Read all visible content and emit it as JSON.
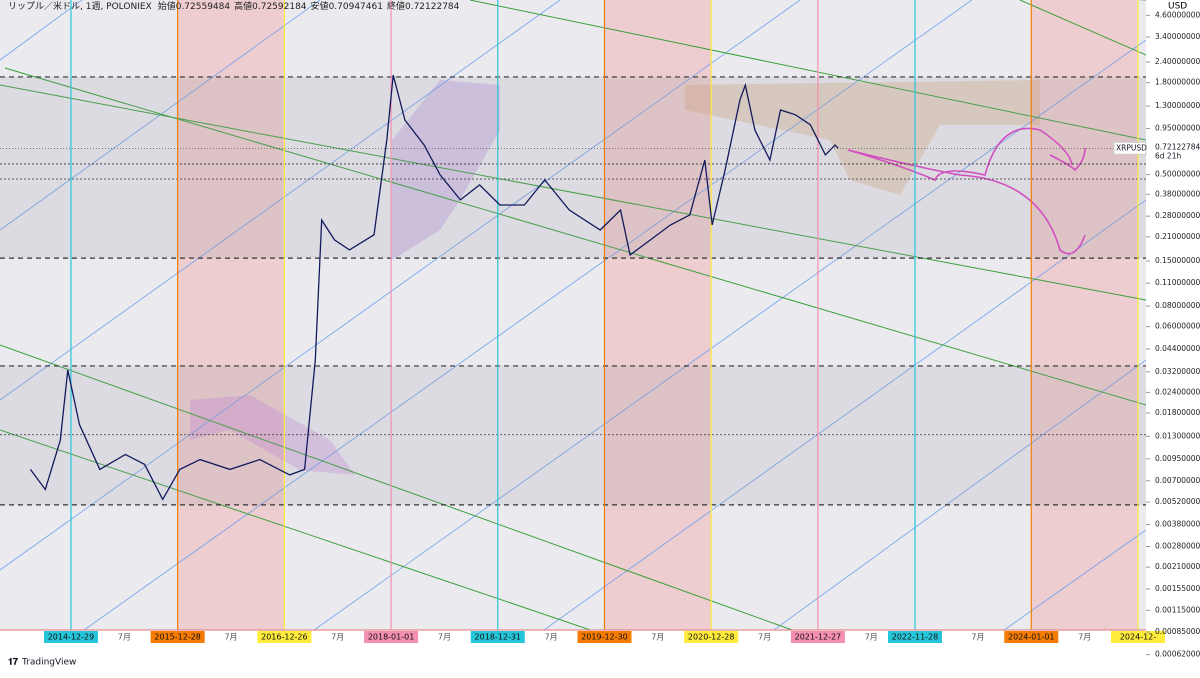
{
  "header": {
    "title": "リップル／米ドル, 1週, POLONIEX",
    "ohlc": [
      {
        "label": "始値",
        "value": 0.72559484
      },
      {
        "label": "高値",
        "value": 0.72592184
      },
      {
        "label": "安値",
        "value": 0.70947461
      },
      {
        "label": "終値",
        "value": 0.72122784
      }
    ]
  },
  "chart_data": {
    "type": "line",
    "log_scale": true,
    "series": [
      {
        "name": "XRPUSD",
        "color": "#131a5c",
        "x": [
          2014.62,
          2014.76,
          2014.9,
          2014.97,
          2015.08,
          2015.27,
          2015.51,
          2015.69,
          2015.86,
          2016.02,
          2016.21,
          2016.49,
          2016.77,
          2017.05,
          2017.19,
          2017.29,
          2017.35,
          2017.47,
          2017.61,
          2017.84,
          2017.96,
          2018.02,
          2018.13,
          2018.31,
          2018.46,
          2018.65,
          2018.83,
          2019.02,
          2019.25,
          2019.44,
          2019.67,
          2019.96,
          2020.15,
          2020.24,
          2020.43,
          2020.62,
          2020.8,
          2020.94,
          2021.01,
          2021.13,
          2021.27,
          2021.32,
          2021.41,
          2021.55,
          2021.65,
          2021.79,
          2021.93,
          2022.07,
          2022.16,
          2022.19
        ],
        "values": [
          0.0082,
          0.0062,
          0.0123,
          0.0328,
          0.0153,
          0.0082,
          0.0101,
          0.0088,
          0.0054,
          0.0082,
          0.0094,
          0.0082,
          0.0094,
          0.0076,
          0.0082,
          0.0377,
          0.265,
          0.201,
          0.175,
          0.216,
          0.81,
          2.0,
          1.07,
          0.755,
          0.497,
          0.351,
          0.433,
          0.327,
          0.327,
          0.464,
          0.305,
          0.231,
          0.305,
          0.163,
          0.201,
          0.248,
          0.285,
          0.612,
          0.248,
          0.533,
          1.42,
          1.74,
          0.93,
          0.612,
          1.23,
          1.15,
          1.0,
          0.658,
          0.755,
          0.721
        ]
      }
    ],
    "last_price": 0.72122784,
    "countdown": "6d 21h",
    "y_unit": "USD",
    "hlines": [
      1.95,
      0.58,
      0.47,
      0.156,
      0.0347,
      0.0133,
      0.005
    ],
    "xlim": [
      2014.335,
      2025.075
    ],
    "xticks": [
      {
        "value": 2015.0,
        "label": "2014-12-29",
        "color": "#26c6da"
      },
      {
        "value": 2015.5,
        "label": "7月"
      },
      {
        "value": 2016.0,
        "label": "2015-12-28",
        "color": "#f57c00"
      },
      {
        "value": 2016.5,
        "label": "7月"
      },
      {
        "value": 2017.0,
        "label": "2016-12-26",
        "color": "#ffeb3b"
      },
      {
        "value": 2017.5,
        "label": "7月"
      },
      {
        "value": 2018.0,
        "label": "2018-01-01",
        "color": "#f48fb1"
      },
      {
        "value": 2018.5,
        "label": "7月"
      },
      {
        "value": 2019.0,
        "label": "2018-12-31",
        "color": "#26c6da"
      },
      {
        "value": 2019.5,
        "label": "7月"
      },
      {
        "value": 2020.0,
        "label": "2019-12-30",
        "color": "#f57c00"
      },
      {
        "value": 2020.5,
        "label": "7月"
      },
      {
        "value": 2021.0,
        "label": "2020-12-28",
        "color": "#ffeb3b"
      },
      {
        "value": 2021.5,
        "label": "7月"
      },
      {
        "value": 2022.0,
        "label": "2021-12-27",
        "color": "#f48fb1"
      },
      {
        "value": 2022.5,
        "label": "7月"
      },
      {
        "value": 2022.91,
        "label": "2022-11-28",
        "color": "#26c6da"
      },
      {
        "value": 2023.5,
        "label": "7月"
      },
      {
        "value": 2024.0,
        "label": "2024-01-01",
        "color": "#f57c00"
      },
      {
        "value": 2024.5,
        "label": "7月"
      },
      {
        "value": 2025.0,
        "label": "2024-12-",
        "color": "#ffeb3b"
      }
    ],
    "ylim": [
      0.0006,
      5.7
    ],
    "yticks": [
      {
        "value": 4.6,
        "label": "4.60000000"
      },
      {
        "value": 3.4,
        "label": "3.40000000"
      },
      {
        "value": 2.4,
        "label": "2.40000000"
      },
      {
        "value": 1.8,
        "label": "1.80000000"
      },
      {
        "value": 1.3,
        "label": "1.30000000"
      },
      {
        "value": 0.95,
        "label": "0.95000000"
      },
      {
        "value": 0.5,
        "label": "0.50000000"
      },
      {
        "value": 0.38,
        "label": "0.38000000"
      },
      {
        "value": 0.28,
        "label": "0.28000000"
      },
      {
        "value": 0.21,
        "label": "0.21000000"
      },
      {
        "value": 0.15,
        "label": "0.15000000"
      },
      {
        "value": 0.11,
        "label": "0.11000000"
      },
      {
        "value": 0.08,
        "label": "0.08000000"
      },
      {
        "value": 0.06,
        "label": "0.06000000"
      },
      {
        "value": 0.044,
        "label": "0.04400000"
      },
      {
        "value": 0.032,
        "label": "0.03200000"
      },
      {
        "value": 0.024,
        "label": "0.02400000"
      },
      {
        "value": 0.018,
        "label": "0.01800000"
      },
      {
        "value": 0.013,
        "label": "0.01300000"
      },
      {
        "value": 0.0095,
        "label": "0.00950000"
      },
      {
        "value": 0.007,
        "label": "0.00700000"
      },
      {
        "value": 0.0052,
        "label": "0.00520000"
      },
      {
        "value": 0.0038,
        "label": "0.00380000"
      },
      {
        "value": 0.0028,
        "label": "0.00280000"
      },
      {
        "value": 0.0021,
        "label": "0.00210000"
      },
      {
        "value": 0.00155,
        "label": "0.00155000"
      },
      {
        "value": 0.00115,
        "label": "0.00115000"
      },
      {
        "value": 0.00085,
        "label": "0.00085000"
      },
      {
        "value": 0.00062,
        "label": "0.00062000"
      }
    ]
  },
  "footer": {
    "brand": "TradingView"
  }
}
